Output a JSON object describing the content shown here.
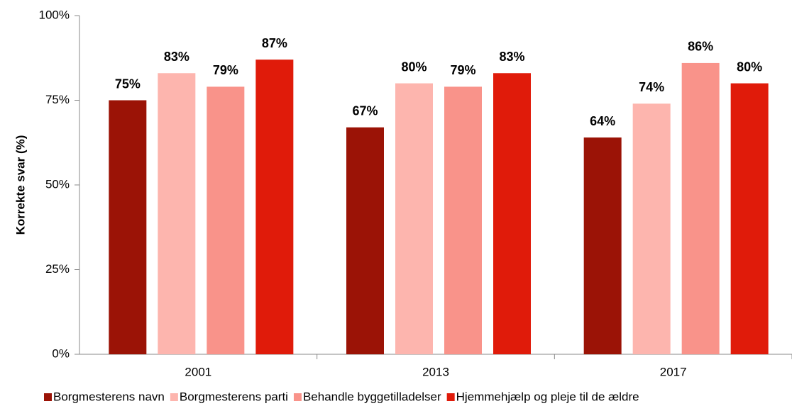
{
  "chart_data": {
    "type": "bar",
    "y_label": "Korrekte svar (%)",
    "categories": [
      "2001",
      "2013",
      "2017"
    ],
    "series": [
      {
        "name": "Borgmesterens navn",
        "color": "#9b1306",
        "values": [
          75,
          67,
          64
        ],
        "value_labels": [
          "75%",
          "67%",
          "64%"
        ]
      },
      {
        "name": "Borgmesterens parti",
        "color": "#fdb5ae",
        "values": [
          83,
          80,
          74
        ],
        "value_labels": [
          "83%",
          "80%",
          "74%"
        ]
      },
      {
        "name": "Behandle byggetilladelser",
        "color": "#f9938a",
        "values": [
          79,
          79,
          86
        ],
        "value_labels": [
          "79%",
          "79%",
          "86%"
        ]
      },
      {
        "name": "Hjemmehjælp og pleje til de ældre",
        "color": "#e01b0a",
        "values": [
          87,
          83,
          80
        ],
        "value_labels": [
          "87%",
          "83%",
          "80%"
        ]
      }
    ],
    "ylim": [
      0,
      100
    ],
    "yticks": [
      {
        "value": 0,
        "label": "0%"
      },
      {
        "value": 25,
        "label": "25%"
      },
      {
        "value": 50,
        "label": "50%"
      },
      {
        "value": 75,
        "label": "75%"
      },
      {
        "value": 100,
        "label": "100%"
      }
    ],
    "grid": false,
    "legend": "bottom"
  }
}
